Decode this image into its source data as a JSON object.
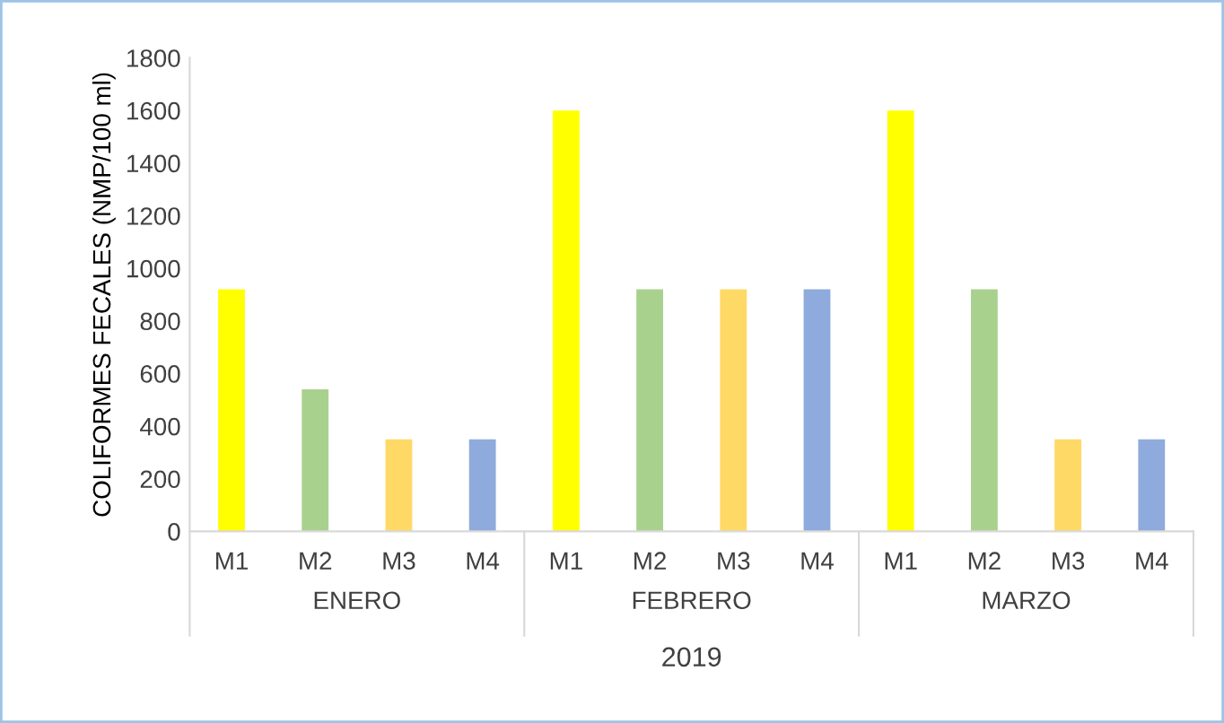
{
  "chart_data": {
    "type": "bar",
    "categories": [
      "M1",
      "M2",
      "M3",
      "M4",
      "M1",
      "M2",
      "M3",
      "M4",
      "M1",
      "M2",
      "M3",
      "M4"
    ],
    "values": [
      920,
      540,
      350,
      350,
      1600,
      920,
      920,
      920,
      1600,
      920,
      350,
      350
    ],
    "colors": [
      "#ffff00",
      "#a9d18e",
      "#ffd966",
      "#8faadc",
      "#ffff00",
      "#a9d18e",
      "#ffd966",
      "#8faadc",
      "#ffff00",
      "#a9d18e",
      "#ffd966",
      "#8faadc"
    ],
    "ylabel": "COLIFORMES FECALES (NMP/100 ml)",
    "xlabel": "2019",
    "annotations": [
      "ENERO",
      "FEBRERO",
      "MARZO"
    ],
    "ylim": [
      0,
      1800
    ],
    "yticks": [
      0,
      200,
      400,
      600,
      800,
      1000,
      1200,
      1400,
      1600,
      1800
    ],
    "grid": false,
    "legend": false
  }
}
